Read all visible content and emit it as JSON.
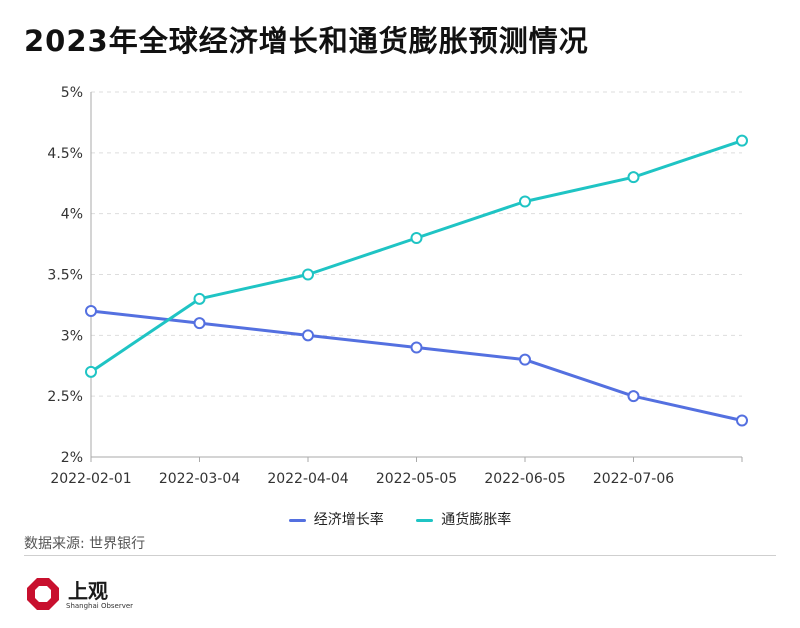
{
  "title": "2023年全球经济增长和通货膨胀预测情况",
  "source": "数据来源: 世界银行",
  "logo": {
    "cn": "上观",
    "en": "Shanghai Observer"
  },
  "colors": {
    "growth": "#5470e0",
    "inflation": "#1fc4c4",
    "grid": "#dddddd",
    "axis": "#aaaaaa",
    "logo": "#c8102e"
  },
  "chart_data": {
    "type": "line",
    "x": [
      "2022-02-01",
      "2022-03-04",
      "2022-04-04",
      "2022-05-05",
      "2022-06-05",
      "2022-07-06",
      "2022-08-06"
    ],
    "xtick_labels": [
      "2022-02-01",
      "2022-03-04",
      "2022-04-04",
      "2022-05-05",
      "2022-06-05",
      "2022-07-06"
    ],
    "ytick_labels": [
      "2%",
      "2.5%",
      "3%",
      "3.5%",
      "4%",
      "4.5%",
      "5%"
    ],
    "ylim": [
      2,
      5
    ],
    "y_unit": "%",
    "grid": "horizontal dashed",
    "legend_position": "bottom",
    "series": [
      {
        "name": "经济增长率",
        "color": "#5470e0",
        "values": [
          3.2,
          3.1,
          3.0,
          2.9,
          2.8,
          2.5,
          2.3
        ]
      },
      {
        "name": "通货膨胀率",
        "color": "#1fc4c4",
        "values": [
          2.7,
          3.3,
          3.5,
          3.8,
          4.1,
          4.3,
          4.6
        ]
      }
    ]
  }
}
